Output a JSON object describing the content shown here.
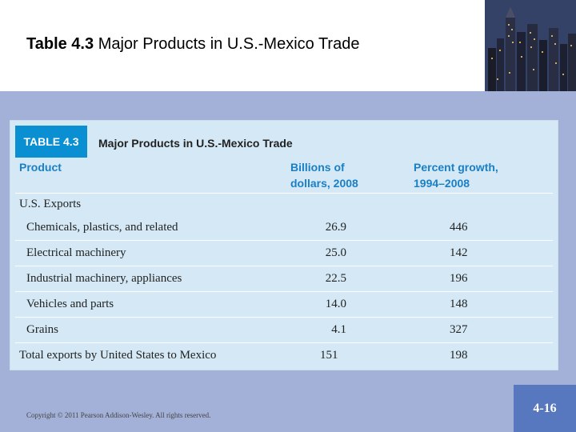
{
  "slide": {
    "title_number": "Table 4.3",
    "title_text": "Major Products in U.S.-Mexico Trade",
    "copyright": "Copyright © 2011 Pearson Addison-Wesley. All rights reserved.",
    "page_number": "4-16"
  },
  "table": {
    "badge": "TABLE 4.3",
    "caption": "Major Products in U.S.-Mexico Trade",
    "headers": {
      "product": "Product",
      "billions": "Billions of dollars, 2008",
      "growth": "Percent growth, 1994–2008"
    },
    "section_label": "U.S. Exports",
    "rows": [
      {
        "product": "Chemicals, plastics, and related",
        "billions": "26.9",
        "growth": "446"
      },
      {
        "product": "Electrical machinery",
        "billions": "25.0",
        "growth": "142"
      },
      {
        "product": "Industrial machinery, appliances",
        "billions": "22.5",
        "growth": "196"
      },
      {
        "product": "Vehicles and parts",
        "billions": "14.0",
        "growth": "148"
      },
      {
        "product": "Grains",
        "billions": "4.1",
        "growth": "327"
      }
    ],
    "total": {
      "product": "Total exports by United States to Mexico",
      "billions": "151",
      "growth": "198"
    }
  }
}
